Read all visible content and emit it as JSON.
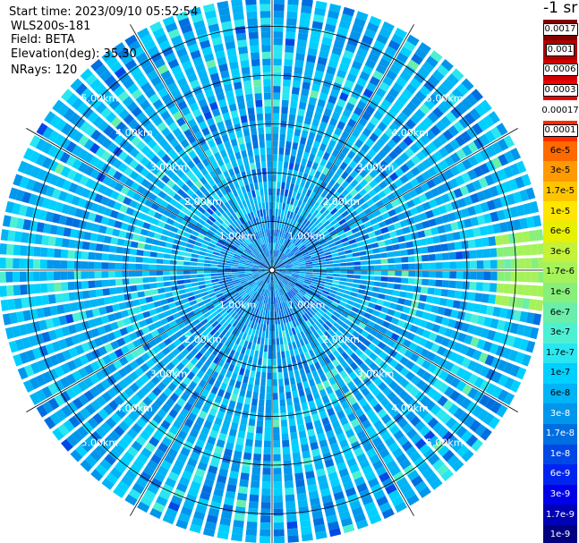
{
  "info": {
    "start_time": "Start time: 2023/09/10 05:52:54",
    "instrument": "WLS200s-181",
    "field": "Field: BETA",
    "elevation": "Elevation(deg): 35.30",
    "nrays": "NRays: 120"
  },
  "colorbar": {
    "unit_title": "-1 sr",
    "levels": [
      {
        "label": "0.0017",
        "color": "#800000",
        "boxed": true
      },
      {
        "label": "0.001",
        "color": "#b00000",
        "boxed": true
      },
      {
        "label": "0.0006",
        "color": "#d00000",
        "boxed": true
      },
      {
        "label": "0.0003",
        "color": "#f00000",
        "boxed": true
      },
      {
        "label": "0.00017",
        "color": "#ffffff",
        "boxed": false
      },
      {
        "label": "0.0001",
        "color": "#ff2a00",
        "boxed": true
      },
      {
        "label": "6e-5",
        "color": "#ff6a00",
        "boxed": false
      },
      {
        "label": "3e-5",
        "color": "#ff9a00",
        "boxed": false
      },
      {
        "label": "1.7e-5",
        "color": "#ffc400",
        "boxed": false
      },
      {
        "label": "1e-5",
        "color": "#ffe600",
        "boxed": false
      },
      {
        "label": "6e-6",
        "color": "#e6f000",
        "boxed": false
      },
      {
        "label": "3e-6",
        "color": "#c4f23a",
        "boxed": false
      },
      {
        "label": "1.7e-6",
        "color": "#a6f25a",
        "boxed": false
      },
      {
        "label": "1e-6",
        "color": "#88f07a",
        "boxed": false
      },
      {
        "label": "6e-7",
        "color": "#6aeeaa",
        "boxed": false
      },
      {
        "label": "3e-7",
        "color": "#4ef0d4",
        "boxed": false
      },
      {
        "label": "1.7e-7",
        "color": "#2ae6f0",
        "boxed": false
      },
      {
        "label": "1e-7",
        "color": "#00d0ff",
        "boxed": false
      },
      {
        "label": "6e-8",
        "color": "#00b4f6",
        "boxed": false
      },
      {
        "label": "3e-8",
        "color": "#0096ec",
        "boxed": false
      },
      {
        "label": "1.7e-8",
        "color": "#006ee0",
        "boxed": false
      },
      {
        "label": "1e-8",
        "color": "#0048e6",
        "boxed": false
      },
      {
        "label": "6e-9",
        "color": "#0024f0",
        "boxed": false
      },
      {
        "label": "3e-9",
        "color": "#0000e8",
        "boxed": false
      },
      {
        "label": "1.7e-9",
        "color": "#0000b4",
        "boxed": false
      },
      {
        "label": "1e-9",
        "color": "#000080",
        "boxed": false
      }
    ]
  },
  "chart_data": {
    "type": "heatmap",
    "projection": "polar PPI",
    "title": "",
    "field": "BETA",
    "elevation_deg": 35.3,
    "n_rays": 120,
    "range_rings_km": [
      1,
      2,
      3,
      4,
      5
    ],
    "range_ring_labels": [
      "1.00km",
      "2.00km",
      "3.00km",
      "4.00km",
      "5.00km"
    ],
    "max_range_km": 5.6,
    "spokes_deg": [
      0,
      30,
      60,
      90,
      120,
      150,
      180,
      210,
      240,
      270,
      300,
      330
    ],
    "dominant_values": [
      "3e-8",
      "6e-8",
      "1e-7",
      "1.7e-7"
    ],
    "notable": [
      {
        "azimuth_deg": 90,
        "range_km": [
          4.5,
          5.6
        ],
        "value": "1e-6"
      },
      {
        "azimuth_deg": 270,
        "range_km": [
          4.5,
          5.6
        ],
        "value": "3e-7"
      }
    ]
  }
}
